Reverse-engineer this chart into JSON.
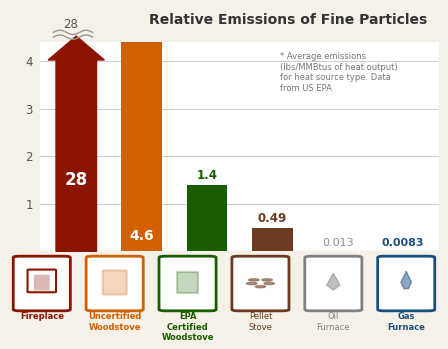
{
  "categories": [
    "Fireplace",
    "Uncertified\nWoodstove",
    "EPA\nCertified\nWoodstove",
    "Pellet\nStove",
    "Oil\nFurnace",
    "Gas\nFurnace"
  ],
  "values": [
    28,
    4.6,
    1.4,
    0.49,
    0.013,
    0.0083
  ],
  "bar_colors": [
    "#8B1500",
    "#D06000",
    "#1A5C00",
    "#6B3A1F",
    "#808080",
    "#1A5080"
  ],
  "label_colors": [
    "#FFFFFF",
    "#FFFFFF",
    "#1A5C00",
    "#6B3A1F",
    "#909090",
    "#1A5080"
  ],
  "labels": [
    "28",
    "4.6",
    "1.4",
    "0.49",
    "0.013",
    "0.0083"
  ],
  "title": "Relative Emissions of Fine Particles",
  "annotation": "* Average emissions\n(lbs/MMBtus of heat output)\nfor heat source type. Data\nfrom US EPA",
  "ylim": [
    0,
    4.4
  ],
  "yticks": [
    1,
    2,
    3,
    4
  ],
  "ytick_top": 28,
  "background_color": "#F5F0E8",
  "plot_bg": "#FFFFFF",
  "icon_colors": [
    "#8B1500",
    "#D06000",
    "#1A5C00",
    "#6B3A1F",
    "#808080",
    "#1A5080"
  ],
  "cat_label_colors": [
    "#8B1500",
    "#D06000",
    "#1A5C00",
    "#6B3A1F",
    "#808080",
    "#1A5080"
  ],
  "cat_label_bold": [
    true,
    true,
    true,
    false,
    false,
    true
  ],
  "cat_labels": [
    "Fireplace",
    "Uncertified\nWoodstove",
    "EPA\nCertified\nWoodstove",
    "Pellet\nStove",
    "Oil\nFurnace",
    "Gas\nFurnace"
  ]
}
